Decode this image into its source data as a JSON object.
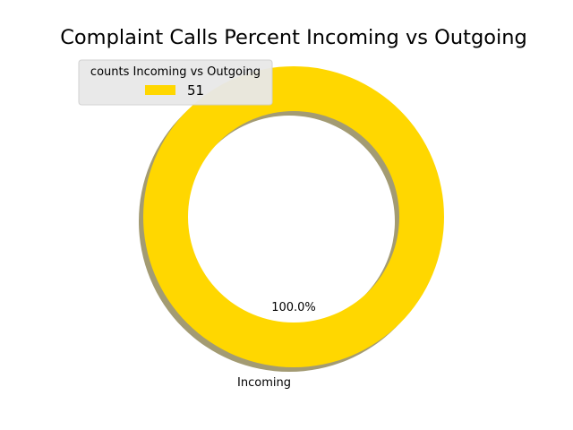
{
  "chart_data": {
    "type": "pie",
    "style": "donut",
    "title": "Complaint Calls Percent Incoming vs Outgoing",
    "slices": [
      {
        "label": "Incoming",
        "value": 51,
        "percent_label": "100.0%",
        "color": "#FFD700"
      }
    ],
    "legend": {
      "title": "counts Incoming vs Outgoing",
      "entries": [
        {
          "label": "51",
          "color": "#FFD700"
        }
      ],
      "placement": "upper-left"
    },
    "shadow": true,
    "shadow_color": "#A39B73"
  }
}
